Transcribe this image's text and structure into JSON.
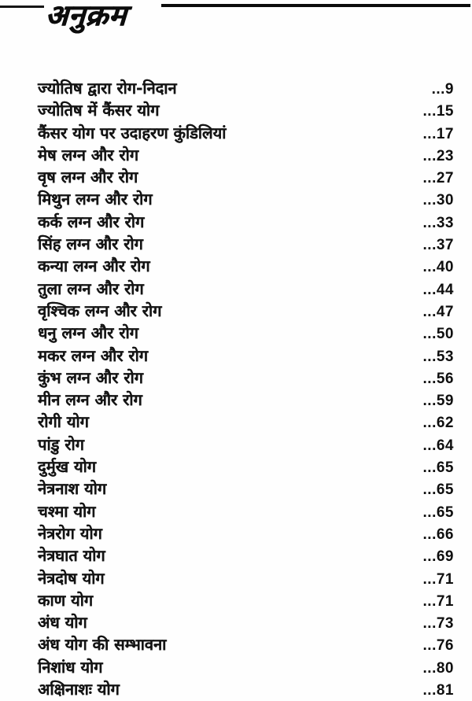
{
  "header": {
    "title": "अनुक्रम"
  },
  "toc": {
    "entries": [
      {
        "label": "ज्योतिष द्वारा रोग-निदान",
        "page": "...9"
      },
      {
        "label": "ज्योतिष में कैंसर योग",
        "page": "...15"
      },
      {
        "label": "कैंसर योग पर उदाहरण कुंडिलियां",
        "page": "...17"
      },
      {
        "label": "मेष लग्न और रोग",
        "page": "...23"
      },
      {
        "label": "वृष लग्न और रोग",
        "page": "...27"
      },
      {
        "label": "मिथुन लग्न और रोग",
        "page": "...30"
      },
      {
        "label": "कर्क लग्न और रोग",
        "page": "...33"
      },
      {
        "label": "सिंह लग्न और रोग",
        "page": "...37"
      },
      {
        "label": "कन्या लग्न और रोग",
        "page": "...40"
      },
      {
        "label": "तुला लग्न और रोग",
        "page": "...44"
      },
      {
        "label": "वृश्चिक लग्न और रोग",
        "page": "...47"
      },
      {
        "label": "धनु लग्न और रोग",
        "page": "...50"
      },
      {
        "label": "मकर लग्न और रोग",
        "page": "...53"
      },
      {
        "label": "कुंभ लग्न और रोग",
        "page": "...56"
      },
      {
        "label": "मीन लग्न और रोग",
        "page": "...59"
      },
      {
        "label": "रोगी योग",
        "page": "...62"
      },
      {
        "label": "पांडु रोग",
        "page": "...64"
      },
      {
        "label": "दुर्मुख योग",
        "page": "...65"
      },
      {
        "label": "नेत्रनाश योग",
        "page": "...65"
      },
      {
        "label": "चश्मा योग",
        "page": "...65"
      },
      {
        "label": "नेत्ररोग योग",
        "page": "...66"
      },
      {
        "label": "नेत्रघात योग",
        "page": "...69"
      },
      {
        "label": "नेत्रदोष योग",
        "page": "...71"
      },
      {
        "label": "काण योग",
        "page": "...71"
      },
      {
        "label": "अंध योग",
        "page": "...73"
      },
      {
        "label": "अंध योग की सम्भावना",
        "page": "...76"
      },
      {
        "label": "निशांध योग",
        "page": "...80"
      },
      {
        "label": "अक्षिनाशः योग",
        "page": "...81"
      }
    ]
  }
}
